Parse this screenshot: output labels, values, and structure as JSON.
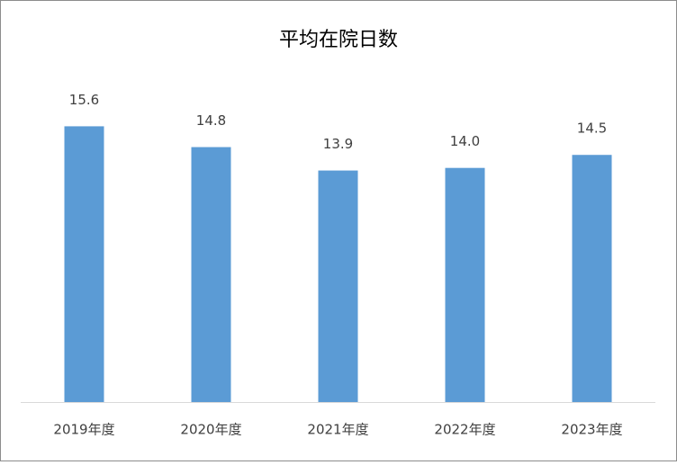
{
  "chart_data": {
    "type": "bar",
    "title": "平均在院日数",
    "categories": [
      "2019年度",
      "2020年度",
      "2021年度",
      "2022年度",
      "2023年度"
    ],
    "values": [
      15.6,
      14.8,
      13.9,
      14.0,
      14.5
    ],
    "value_labels": [
      "15.6",
      "14.8",
      "13.9",
      "14.0",
      "14.5"
    ],
    "color": "#5b9bd5",
    "ylim": [
      5,
      18
    ]
  }
}
